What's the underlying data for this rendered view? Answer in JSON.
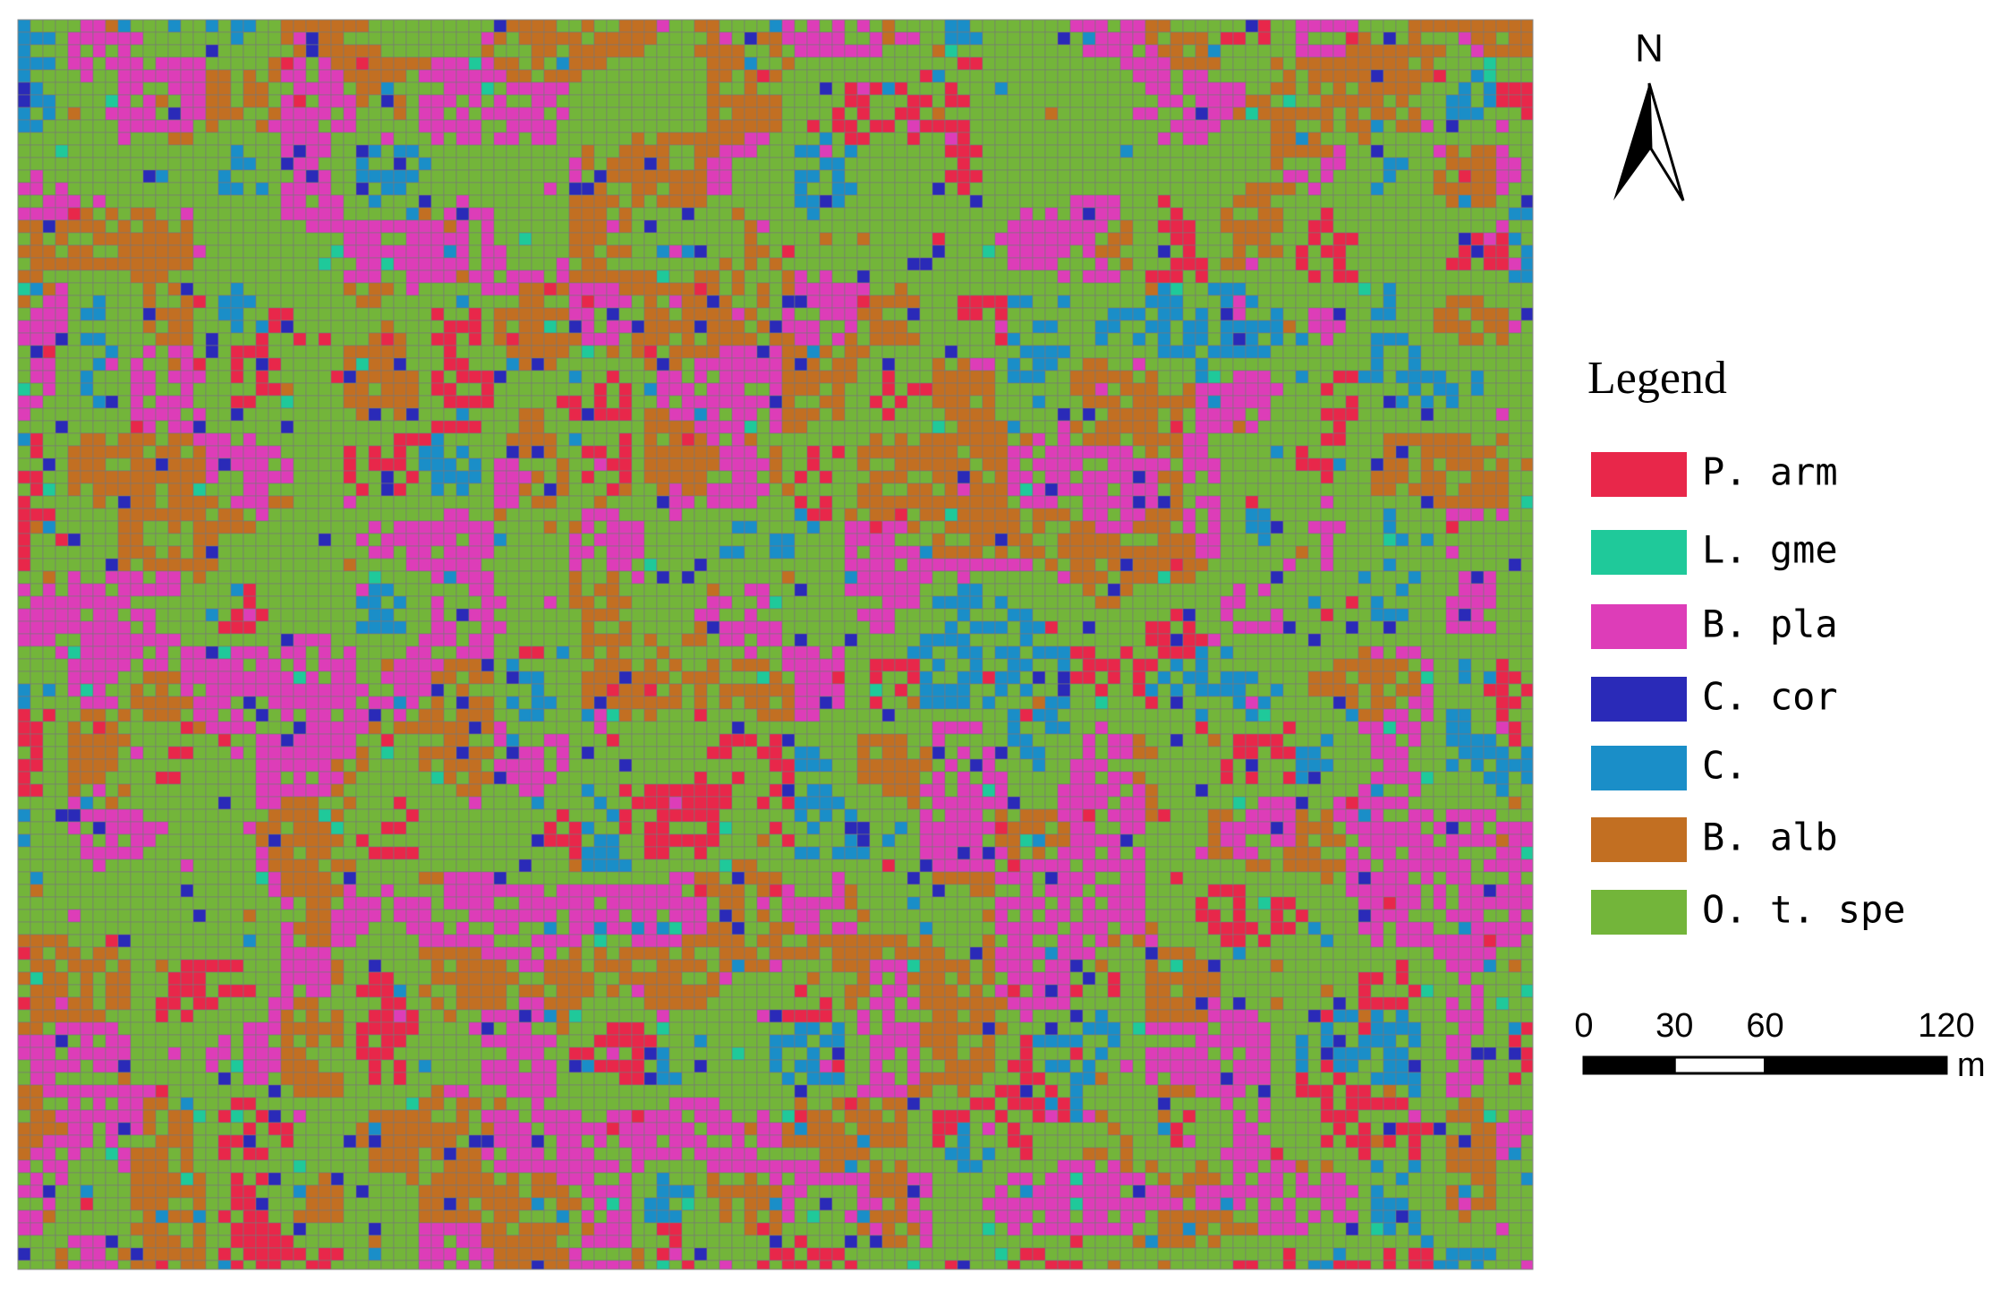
{
  "north_label": "N",
  "legend": {
    "title": "Legend",
    "items": [
      {
        "label": "P. arm",
        "color": "#e8274a"
      },
      {
        "label": "L. gme",
        "color": "#1fc99a"
      },
      {
        "label": "B. pla",
        "color": "#dd3db8"
      },
      {
        "label": "C. cor",
        "color": "#2a2ab8"
      },
      {
        "label": "C.",
        "color": "#1a8ec8"
      },
      {
        "label": "B. alb",
        "color": "#c26f22"
      },
      {
        "label": "O. t. spe",
        "color": "#73b53a"
      }
    ]
  },
  "scale_bar": {
    "ticks": [
      0,
      30,
      60,
      120
    ],
    "unit": "m"
  }
}
